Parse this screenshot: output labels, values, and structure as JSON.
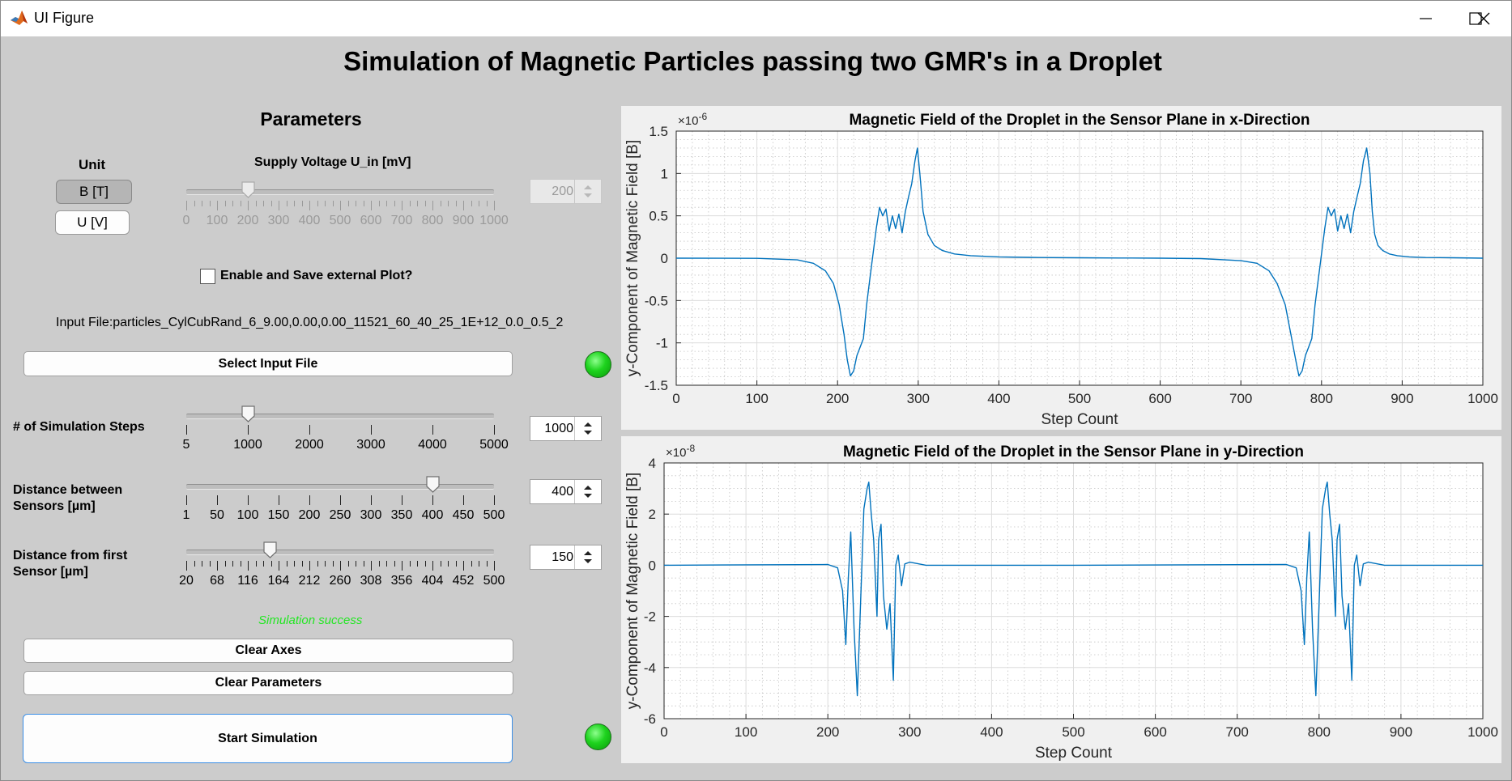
{
  "window": {
    "title": "UI Figure"
  },
  "app_title": "Simulation of Magnetic Particles passing two GMR's in a Droplet",
  "parameters": {
    "heading": "Parameters",
    "unit": {
      "label": "Unit",
      "options": [
        "B [T]",
        "U [V]"
      ],
      "selected": "B [T]"
    },
    "supply_voltage": {
      "label": "Supply Voltage U_in [mV]",
      "value": "200",
      "value_num": 200,
      "min": 0,
      "max": 1000,
      "ticks": [
        "0",
        "100",
        "200",
        "300",
        "400",
        "500",
        "600",
        "700",
        "800",
        "900",
        "1000"
      ],
      "enabled": false
    },
    "external_plot": {
      "label": "Enable and Save external Plot?",
      "checked": false
    },
    "input_file": {
      "text": "Input File:particles_CylCubRand_6_9.00,0.00,0.00_11521_60_40_25_1E+12_0.0_0.5_2"
    },
    "select_button": "Select Input File",
    "sim_steps": {
      "label": "# of Simulation Steps",
      "value": "1000",
      "value_num": 1000,
      "min": 5,
      "max": 5000,
      "ticks": [
        "5",
        "1000",
        "2000",
        "3000",
        "4000",
        "5000"
      ]
    },
    "distance_sensors": {
      "label_line1": "Distance between",
      "label_line2": "Sensors [µm]",
      "value": "400",
      "value_num": 400,
      "min": 1,
      "max": 500,
      "ticks": [
        "1",
        "50",
        "100",
        "150",
        "200",
        "250",
        "300",
        "350",
        "400",
        "450",
        "500"
      ]
    },
    "distance_first": {
      "label_line1": "Distance from first",
      "label_line2": "Sensor [µm]",
      "value": "150",
      "value_num": 150,
      "min": 20,
      "max": 500,
      "ticks": [
        "20",
        "68",
        "116",
        "164",
        "212",
        "260",
        "308",
        "356",
        "404",
        "452",
        "500"
      ]
    },
    "status": "Simulation success",
    "clear_axes": "Clear Axes",
    "clear_params": "Clear Parameters",
    "start": "Start Simulation"
  },
  "colors": {
    "lamp": "#1ed31e",
    "line": "#0072bd",
    "status": "#24e624",
    "bg": "#cccccc"
  },
  "chart_data": [
    {
      "type": "line",
      "title": "Magnetic Field of the Droplet in the Sensor Plane in x-Direction",
      "xlabel": "Step Count",
      "ylabel": "y-Component of Magnetic Field [B]",
      "exponent": "×10",
      "exponent_power": "-6",
      "xlim": [
        0,
        1000
      ],
      "ylim": [
        -1.5,
        1.5
      ],
      "xticks": [
        "0",
        "100",
        "200",
        "300",
        "400",
        "500",
        "600",
        "700",
        "800",
        "900",
        "1000"
      ],
      "yticks": [
        "-1.5",
        "-1",
        "-0.5",
        "0",
        "0.5",
        "1",
        "1.5"
      ],
      "grid": true,
      "series": [
        {
          "x": [
            0,
            100,
            150,
            170,
            185,
            195,
            202,
            208,
            212,
            216,
            220,
            224,
            228,
            232,
            236,
            240,
            244,
            248,
            252,
            256,
            260,
            264,
            268,
            272,
            276,
            280,
            284,
            288,
            292,
            296,
            299,
            302,
            306,
            312,
            320,
            330,
            345,
            365,
            400,
            450,
            500,
            550,
            600,
            650,
            700,
            720,
            735,
            745,
            755,
            762,
            768,
            772,
            776,
            780,
            784,
            788,
            792,
            796,
            800,
            804,
            808,
            812,
            816,
            820,
            824,
            828,
            832,
            836,
            840,
            844,
            848,
            852,
            856,
            860,
            863,
            866,
            870,
            876,
            884,
            894,
            909,
            929,
            964,
            1000
          ],
          "y": [
            0,
            -0.002,
            -0.02,
            -0.06,
            -0.15,
            -0.3,
            -0.55,
            -0.9,
            -1.2,
            -1.39,
            -1.33,
            -1.15,
            -1.05,
            -0.95,
            -0.55,
            -0.25,
            0.05,
            0.35,
            0.6,
            0.5,
            0.58,
            0.32,
            0.5,
            0.35,
            0.52,
            0.3,
            0.55,
            0.72,
            0.88,
            1.15,
            1.3,
            1.0,
            0.55,
            0.28,
            0.15,
            0.09,
            0.05,
            0.03,
            0.015,
            0.008,
            0.005,
            0.002,
            0.0,
            -0.005,
            -0.03,
            -0.06,
            -0.15,
            -0.3,
            -0.55,
            -0.9,
            -1.2,
            -1.39,
            -1.33,
            -1.15,
            -1.05,
            -0.95,
            -0.55,
            -0.25,
            0.05,
            0.35,
            0.6,
            0.5,
            0.58,
            0.32,
            0.5,
            0.35,
            0.52,
            0.3,
            0.55,
            0.72,
            0.88,
            1.15,
            1.3,
            1.0,
            0.55,
            0.28,
            0.15,
            0.09,
            0.05,
            0.03,
            0.015,
            0.008,
            0.005,
            0.0
          ]
        }
      ]
    },
    {
      "type": "line",
      "title": "Magnetic Field of the Droplet in the Sensor Plane in y-Direction",
      "xlabel": "Step Count",
      "ylabel": "y-Component of Magnetic Field [B]",
      "exponent": "×10",
      "exponent_power": "-8",
      "xlim": [
        0,
        1000
      ],
      "ylim": [
        -6,
        4
      ],
      "xticks": [
        "0",
        "100",
        "200",
        "300",
        "400",
        "500",
        "600",
        "700",
        "800",
        "900",
        "1000"
      ],
      "yticks": [
        "-6",
        "-4",
        "-2",
        "0",
        "2",
        "4"
      ],
      "grid": true,
      "series": [
        {
          "x": [
            0,
            200,
            212,
            218,
            222,
            225,
            228,
            232,
            236,
            240,
            244,
            248,
            250,
            253,
            256,
            260,
            262,
            265,
            268,
            272,
            276,
            280,
            283,
            286,
            290,
            294,
            300,
            320,
            500,
            760,
            772,
            778,
            782,
            785,
            788,
            792,
            796,
            800,
            804,
            808,
            810,
            813,
            816,
            820,
            822,
            825,
            828,
            832,
            836,
            840,
            843,
            846,
            850,
            854,
            860,
            880,
            1000
          ],
          "y": [
            0,
            0.03,
            -0.1,
            -1.0,
            -3.1,
            -0.5,
            1.3,
            -2.5,
            -5.1,
            -1.5,
            2.2,
            3.0,
            3.25,
            2.0,
            1.0,
            -2.0,
            1.0,
            1.6,
            -1.2,
            -2.5,
            -1.5,
            -4.5,
            0.0,
            0.4,
            -0.8,
            0.05,
            0.12,
            0.0,
            0.0,
            0.03,
            -0.1,
            -1.0,
            -3.1,
            -0.5,
            1.3,
            -2.5,
            -5.1,
            -1.5,
            2.2,
            3.0,
            3.25,
            2.0,
            1.0,
            -2.0,
            1.0,
            1.6,
            -1.2,
            -2.5,
            -1.5,
            -4.5,
            0.0,
            0.4,
            -0.8,
            0.05,
            0.12,
            0.0,
            0.0
          ]
        }
      ]
    }
  ]
}
